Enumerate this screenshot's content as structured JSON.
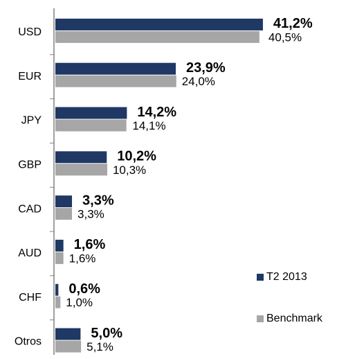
{
  "chart_data": {
    "type": "bar",
    "orientation": "horizontal",
    "categories": [
      "USD",
      "EUR",
      "JPY",
      "GBP",
      "CAD",
      "AUD",
      "CHF",
      "Otros"
    ],
    "series": [
      {
        "name": "T2 2013",
        "color": "#1f3864",
        "values": [
          41.2,
          23.9,
          14.2,
          10.2,
          3.3,
          1.6,
          0.6,
          5.0
        ],
        "value_labels": [
          "41,2%",
          "23,9%",
          "14,2%",
          "10,2%",
          "3,3%",
          "1,6%",
          "0,6%",
          "5,0%"
        ]
      },
      {
        "name": "Benchmark",
        "color": "#a6a6a6",
        "values": [
          40.5,
          24.0,
          14.1,
          10.3,
          3.3,
          1.6,
          1.0,
          5.1
        ],
        "value_labels": [
          "40,5%",
          "24,0%",
          "14,1%",
          "10,3%",
          "3,3%",
          "1,6%",
          "1,0%",
          "5,1%"
        ]
      }
    ]
  }
}
